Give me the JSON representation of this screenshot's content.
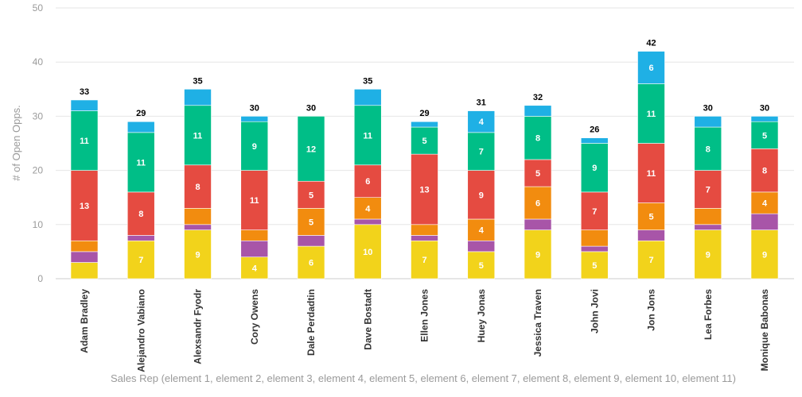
{
  "chart_data": {
    "type": "bar",
    "stacked": true,
    "categories": [
      "Adam Bradley",
      "Alejandro Vabiano",
      "Alexsandr Fyodr",
      "Cory Owens",
      "Dale Perdadtin",
      "Dave Bostadt",
      "Ellen Jones",
      "Huey Jonas",
      "Jessica Traven",
      "John Jovi",
      "Jon Jons",
      "Lea Forbes",
      "Monique Babonas"
    ],
    "series": [
      {
        "color": "#f2d31b",
        "values": [
          3,
          7,
          9,
          4,
          6,
          10,
          7,
          5,
          9,
          5,
          7,
          9,
          9
        ]
      },
      {
        "color": "#a855a8",
        "values": [
          2,
          1,
          1,
          3,
          2,
          1,
          1,
          2,
          2,
          1,
          2,
          1,
          3
        ]
      },
      {
        "color": "#f28c0f",
        "values": [
          2,
          0,
          3,
          2,
          5,
          4,
          2,
          4,
          6,
          3,
          5,
          3,
          4
        ]
      },
      {
        "color": "#e54b41",
        "values": [
          13,
          8,
          8,
          11,
          5,
          6,
          13,
          9,
          5,
          7,
          11,
          7,
          8
        ]
      },
      {
        "color": "#00be87",
        "values": [
          11,
          11,
          11,
          9,
          12,
          11,
          5,
          7,
          8,
          9,
          11,
          8,
          5
        ]
      },
      {
        "color": "#1fb0e5",
        "values": [
          2,
          2,
          3,
          1,
          0,
          3,
          1,
          4,
          2,
          1,
          6,
          2,
          1
        ]
      }
    ],
    "totals": [
      33,
      29,
      35,
      30,
      30,
      35,
      29,
      31,
      32,
      26,
      42,
      30,
      30
    ],
    "ylim": [
      0,
      50
    ],
    "yticks": [
      0,
      10,
      20,
      30,
      40,
      50
    ],
    "ylabel": "# of Open Opps.",
    "xlabel": "Sales Rep (element 1, element 2, element 3, element 4, element 5, element 6, element 7, element 8, element 9, element 10, element 11)",
    "grid": true
  }
}
